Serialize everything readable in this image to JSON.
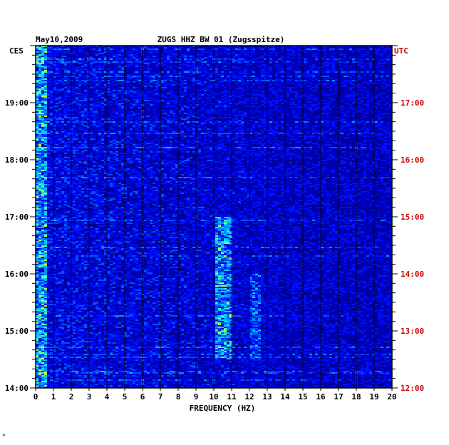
{
  "chart_data": {
    "type": "heatmap",
    "title_left": "May10,2009",
    "title": "ZUGS HHZ BW 01 (Zugsspitze)",
    "left_axis_label": "CES",
    "right_axis_label": "UTC",
    "xlabel": "FREQUENCY (HZ)",
    "x_ticks": [
      "0",
      "1",
      "2",
      "3",
      "4",
      "5",
      "6",
      "7",
      "8",
      "9",
      "10",
      "11",
      "12",
      "13",
      "14",
      "15",
      "16",
      "17",
      "18",
      "19",
      "20"
    ],
    "xlim": [
      0,
      20
    ],
    "left_ticks": [
      "19:00",
      "18:00",
      "17:00",
      "16:00",
      "15:00",
      "14:00"
    ],
    "right_ticks": [
      "17:00",
      "16:00",
      "15:00",
      "14:00",
      "13:00",
      "12:00"
    ],
    "time_range_ces": [
      "14:00",
      "20:00"
    ],
    "grid": true,
    "colors": {
      "background": "#0000b4",
      "axis": "#000000",
      "utc": "#cc0000"
    },
    "features": [
      {
        "freq_hz": [
          0,
          0.6
        ],
        "desc": "strong low-frequency energy band",
        "level": "high"
      },
      {
        "freq_hz": [
          10,
          11
        ],
        "time_ces": [
          "14:30",
          "17:00"
        ],
        "level": "high"
      },
      {
        "freq_hz": [
          12,
          12.6
        ],
        "time_ces": [
          "14:30",
          "16:00"
        ],
        "level": "medium"
      }
    ]
  },
  "footnote": "*"
}
